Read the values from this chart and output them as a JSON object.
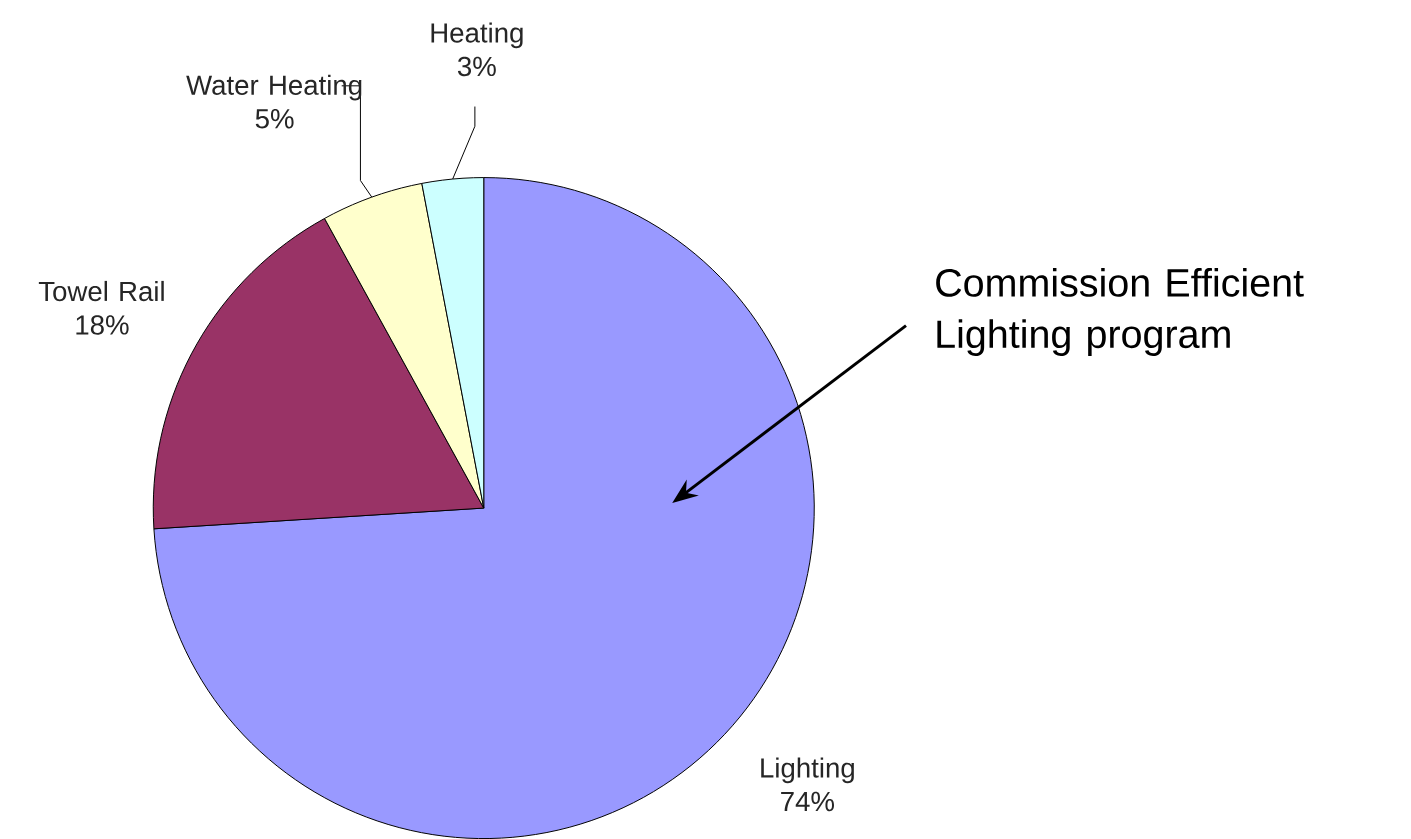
{
  "chart_data": {
    "type": "pie",
    "categories": [
      "Lighting",
      "Towel Rail",
      "Water Heating",
      "Heating"
    ],
    "values": [
      74,
      18,
      5,
      3
    ],
    "colors": [
      "#9999ff",
      "#993366",
      "#ffffcc",
      "#ccffff"
    ],
    "value_labels": [
      "74%",
      "18%",
      "5%",
      "3%"
    ],
    "annotations": [
      "Commission Efficient Lighting program"
    ]
  }
}
